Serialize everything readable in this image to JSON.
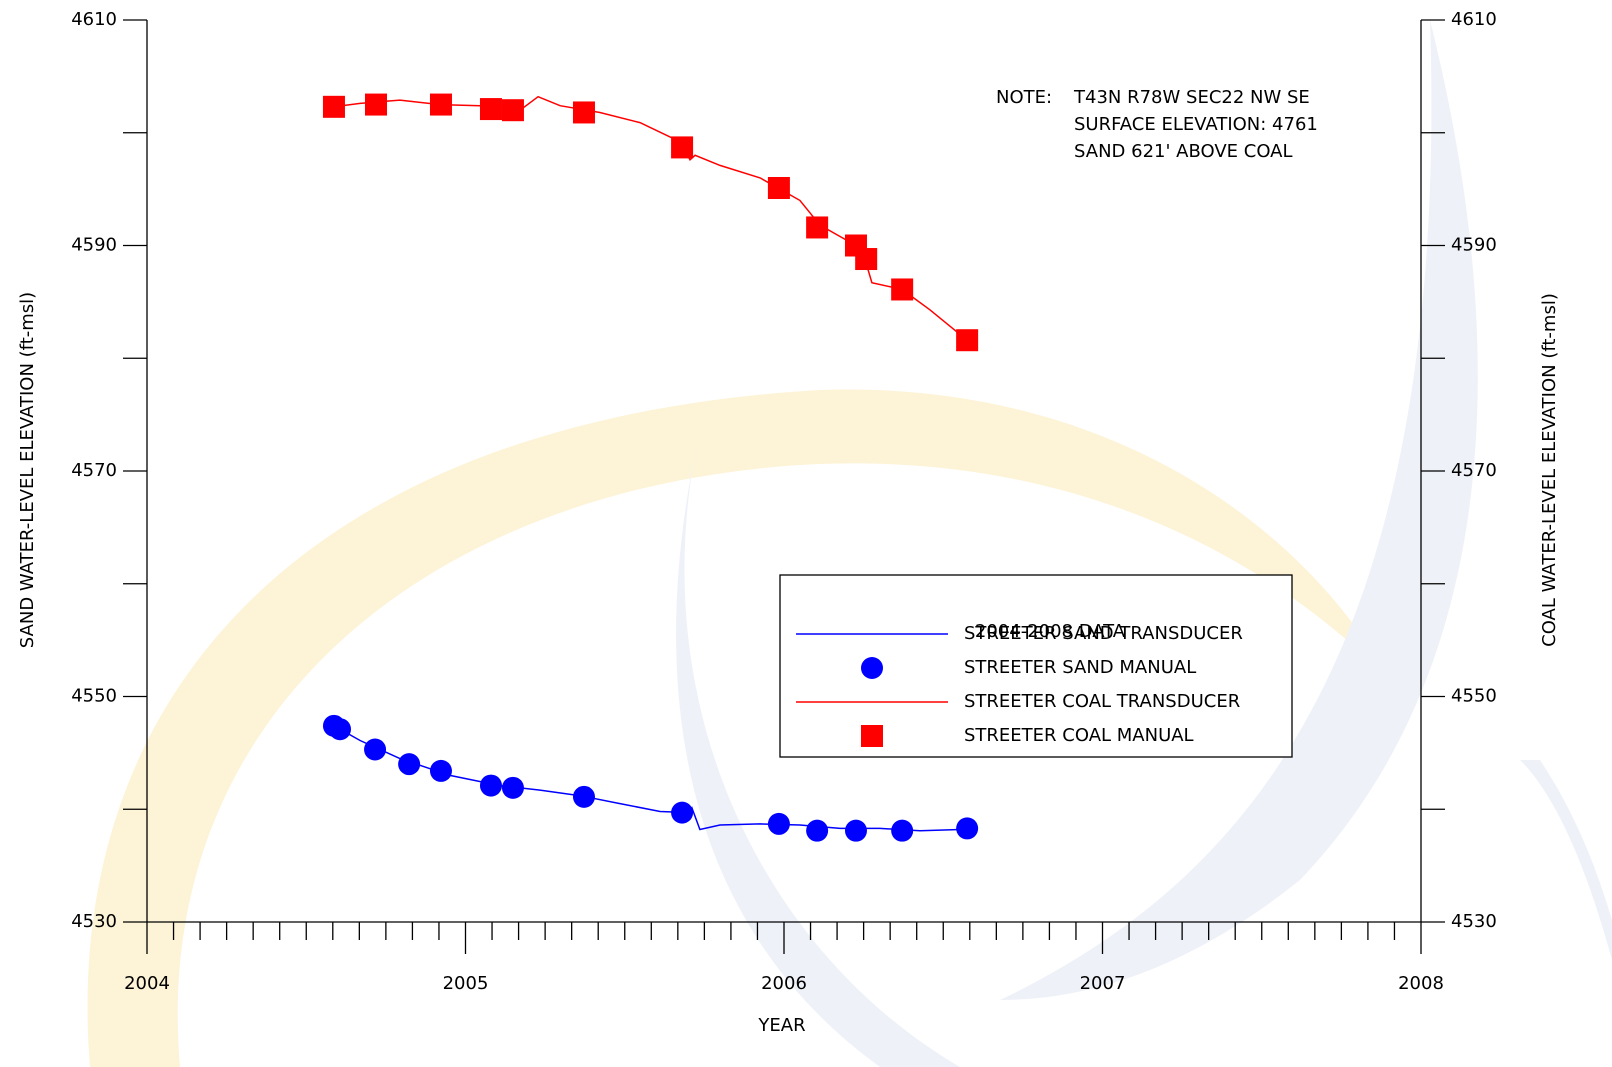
{
  "chart_data": {
    "type": "line",
    "xlabel": "YEAR",
    "ylabel": "SAND WATER-LEVEL ELEVATION  (ft-msl)",
    "y2label": "COAL WATER-LEVEL ELEVATION (ft-msl)",
    "xlim": [
      2004,
      2008
    ],
    "xticks": [
      2004,
      2005,
      2006,
      2007,
      2008
    ],
    "ylim": [
      4530,
      4610
    ],
    "yticks": [
      4530,
      4550,
      4570,
      4590,
      4610
    ],
    "y2lim": [
      4530,
      4610
    ],
    "y2ticks": [
      4530,
      4550,
      4570,
      4590,
      4610
    ],
    "note_label": "NOTE:",
    "note": [
      "T43N R78W SEC22 NW SE",
      "SURFACE ELEVATION: 4761",
      "SAND 621' ABOVE COAL"
    ],
    "legend_title": "2004-2008 DATA",
    "series": [
      {
        "name": "STREETER SAND TRANSDUCER",
        "color": "#0000ff",
        "marker": "line",
        "axis": "y",
        "x": [
          2004.587,
          2004.669,
          2004.794,
          2004.951,
          2005.108,
          2005.234,
          2005.36,
          2005.485,
          2005.611,
          2005.705,
          2005.711,
          2005.736,
          2005.799,
          2005.925,
          2006.05,
          2006.176,
          2006.301,
          2006.427,
          2006.553,
          2006.575
        ],
        "values": [
          4547.4,
          4546.1,
          4544.5,
          4543.0,
          4542.1,
          4541.7,
          4541.2,
          4540.5,
          4539.8,
          4539.7,
          4540.1,
          4538.2,
          4538.6,
          4538.7,
          4538.6,
          4538.3,
          4538.3,
          4538.1,
          4538.2,
          4538.3
        ]
      },
      {
        "name": "STREETER SAND MANUAL",
        "color": "#0000ff",
        "marker": "circle",
        "axis": "y",
        "x": [
          2004.587,
          2004.606,
          2004.716,
          2004.823,
          2004.923,
          2005.08,
          2005.149,
          2005.372,
          2005.68,
          2005.984,
          2006.104,
          2006.226,
          2006.371,
          2006.575
        ],
        "values": [
          4547.4,
          4547.1,
          4545.3,
          4544.0,
          4543.4,
          4542.1,
          4541.9,
          4541.1,
          4539.7,
          4538.7,
          4538.1,
          4538.1,
          4538.1,
          4538.3
        ]
      },
      {
        "name": "STREETER COAL TRANSDUCER",
        "color": "#ff0000",
        "marker": "line",
        "axis": "y2",
        "x": [
          2004.587,
          2004.669,
          2004.794,
          2004.92,
          2005.046,
          2005.171,
          2005.228,
          2005.297,
          2005.422,
          2005.548,
          2005.674,
          2005.705,
          2005.721,
          2005.799,
          2005.925,
          2006.05,
          2006.113,
          2006.226,
          2006.257,
          2006.276,
          2006.371,
          2006.458,
          2006.575
        ],
        "values": [
          4602.3,
          4602.6,
          4602.9,
          4602.5,
          4602.4,
          4602.0,
          4603.2,
          4602.4,
          4601.8,
          4600.9,
          4599.2,
          4597.6,
          4598.0,
          4597.1,
          4596.0,
          4594.0,
          4591.8,
          4590.0,
          4588.5,
          4586.7,
          4586.1,
          4584.3,
          4581.6
        ]
      },
      {
        "name": "STREETER COAL MANUAL",
        "color": "#ff0000",
        "marker": "square",
        "axis": "y2",
        "x": [
          2004.587,
          2004.719,
          2004.923,
          2005.08,
          2005.149,
          2005.372,
          2005.68,
          2005.984,
          2006.104,
          2006.226,
          2006.258,
          2006.371,
          2006.575
        ],
        "values": [
          4602.3,
          4602.5,
          4602.5,
          4602.1,
          4602.0,
          4601.8,
          4598.7,
          4595.1,
          4591.6,
          4590.0,
          4588.8,
          4586.1,
          4581.6
        ]
      }
    ]
  }
}
